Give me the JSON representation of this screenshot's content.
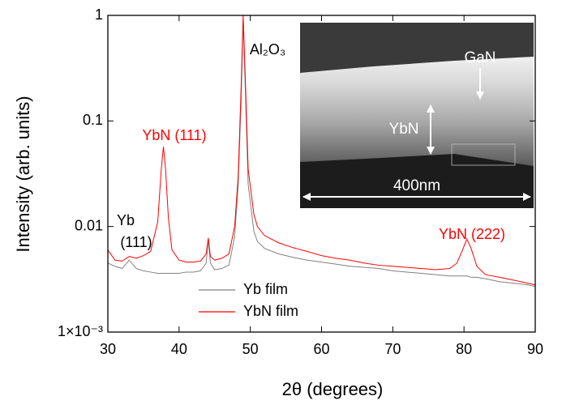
{
  "chart_data": {
    "type": "line",
    "x_label": "2θ (degrees)",
    "y_label": "Intensity (arb. units)",
    "log_y": true,
    "xlim": [
      30,
      90
    ],
    "xticks": [
      30,
      40,
      50,
      60,
      70,
      80,
      90
    ],
    "ylim": [
      0.001,
      1
    ],
    "yticks": [
      {
        "value": 0.001,
        "label": "1×10⁻³"
      },
      0.01,
      0.1,
      1
    ],
    "legend": "lower center",
    "x": [
      30,
      31,
      32,
      33,
      34,
      35,
      36,
      37,
      37.5,
      37.8,
      38.1,
      38.5,
      39,
      40,
      41,
      42,
      43,
      43.8,
      44.1,
      44.4,
      45,
      46,
      47,
      47.8,
      48.3,
      48.7,
      49,
      49.3,
      49.7,
      50.5,
      51,
      52,
      54,
      56,
      58,
      60,
      62,
      64,
      66,
      68,
      70,
      72,
      74,
      76,
      78,
      79,
      79.8,
      80.4,
      81,
      81.8,
      83,
      85,
      87,
      89,
      90
    ],
    "series": [
      {
        "name": "Yb film",
        "color": "#808080",
        "values": [
          0.0045,
          0.0042,
          0.004,
          0.0048,
          0.004,
          0.0038,
          0.0037,
          0.0036,
          0.0036,
          0.0036,
          0.0036,
          0.0036,
          0.0036,
          0.0036,
          0.0037,
          0.0037,
          0.0038,
          0.0045,
          0.0075,
          0.0045,
          0.0039,
          0.004,
          0.0043,
          0.008,
          0.025,
          0.15,
          0.9,
          0.2,
          0.025,
          0.009,
          0.0072,
          0.0062,
          0.0055,
          0.0051,
          0.0048,
          0.0046,
          0.0044,
          0.0042,
          0.0041,
          0.004,
          0.0038,
          0.0037,
          0.0036,
          0.0035,
          0.0034,
          0.0034,
          0.0034,
          0.0034,
          0.0033,
          0.0033,
          0.0032,
          0.003,
          0.0029,
          0.0028,
          0.0027
        ]
      },
      {
        "name": "YbN film",
        "color": "#ff0000",
        "values": [
          0.006,
          0.0048,
          0.0047,
          0.0052,
          0.005,
          0.0053,
          0.0058,
          0.011,
          0.035,
          0.057,
          0.035,
          0.012,
          0.006,
          0.0048,
          0.0046,
          0.0046,
          0.0047,
          0.0055,
          0.0078,
          0.0052,
          0.0048,
          0.005,
          0.0055,
          0.01,
          0.03,
          0.2,
          1,
          0.25,
          0.035,
          0.013,
          0.01,
          0.0082,
          0.007,
          0.0063,
          0.0058,
          0.0053,
          0.005,
          0.0048,
          0.0045,
          0.0043,
          0.0042,
          0.0041,
          0.004,
          0.0039,
          0.004,
          0.0045,
          0.006,
          0.0076,
          0.0062,
          0.0042,
          0.0035,
          0.0033,
          0.0031,
          0.0029,
          0.0028
        ]
      }
    ],
    "annotations": [
      {
        "text": "Al₂O₃"
      },
      {
        "text": "YbN (111)",
        "color": "#ff0000"
      },
      {
        "text": "Yb"
      },
      {
        "text": "(111)"
      },
      {
        "text": "YbN (222)",
        "color": "#ff0000"
      }
    ],
    "inset_labels": [
      "GaN",
      "YbN",
      "400nm"
    ]
  }
}
